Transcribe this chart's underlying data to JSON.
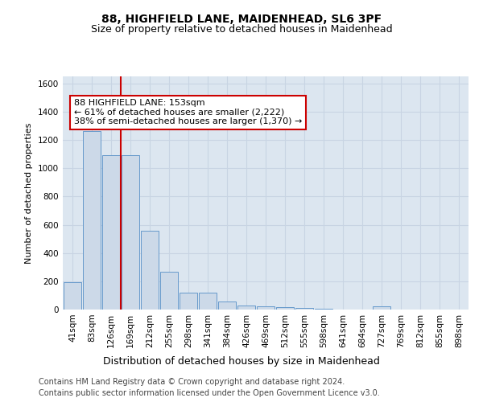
{
  "title1": "88, HIGHFIELD LANE, MAIDENHEAD, SL6 3PF",
  "title2": "Size of property relative to detached houses in Maidenhead",
  "xlabel": "Distribution of detached houses by size in Maidenhead",
  "ylabel": "Number of detached properties",
  "footer1": "Contains HM Land Registry data © Crown copyright and database right 2024.",
  "footer2": "Contains public sector information licensed under the Open Government Licence v3.0.",
  "annotation_line1": "88 HIGHFIELD LANE: 153sqm",
  "annotation_line2": "← 61% of detached houses are smaller (2,222)",
  "annotation_line3": "38% of semi-detached houses are larger (1,370) →",
  "bar_categories": [
    "41sqm",
    "83sqm",
    "126sqm",
    "169sqm",
    "212sqm",
    "255sqm",
    "298sqm",
    "341sqm",
    "384sqm",
    "426sqm",
    "469sqm",
    "512sqm",
    "555sqm",
    "598sqm",
    "641sqm",
    "684sqm",
    "727sqm",
    "769sqm",
    "812sqm",
    "855sqm",
    "898sqm"
  ],
  "bar_values": [
    195,
    1265,
    1095,
    1095,
    555,
    265,
    120,
    120,
    55,
    30,
    20,
    15,
    10,
    5,
    0,
    0,
    25,
    0,
    0,
    0,
    0
  ],
  "bar_color": "#ccd9e8",
  "bar_edge_color": "#6699cc",
  "vline_color": "#cc0000",
  "vline_x": 2.5,
  "ylim": [
    0,
    1650
  ],
  "yticks": [
    0,
    200,
    400,
    600,
    800,
    1000,
    1200,
    1400,
    1600
  ],
  "grid_color": "#c8d4e3",
  "bg_color": "#dce6f0",
  "title1_fontsize": 10,
  "title2_fontsize": 9,
  "xlabel_fontsize": 9,
  "ylabel_fontsize": 8,
  "tick_fontsize": 7.5,
  "footer_fontsize": 7,
  "ann_fontsize": 8
}
